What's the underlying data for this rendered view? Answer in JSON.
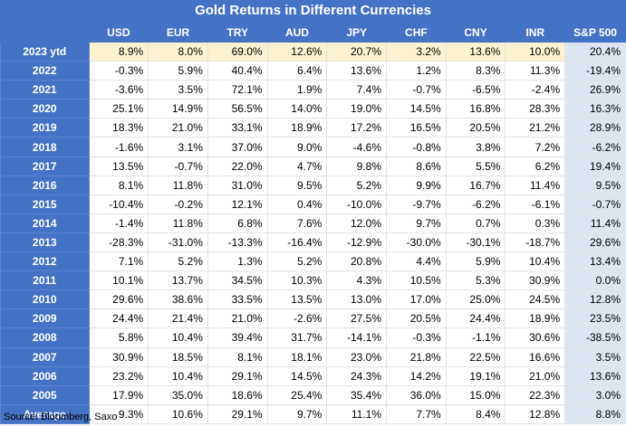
{
  "title": "Gold Returns in Different Currencies",
  "columns": [
    "",
    "USD",
    "EUR",
    "TRY",
    "AUD",
    "JPY",
    "CHF",
    "CNY",
    "INR",
    "S&P 500"
  ],
  "rows": [
    {
      "label": "2023 ytd",
      "values": [
        "8.9%",
        "8.0%",
        "69.0%",
        "12.6%",
        "20.7%",
        "3.2%",
        "13.6%",
        "10.0%",
        "20.4%"
      ]
    },
    {
      "label": "2022",
      "values": [
        "-0.3%",
        "5.9%",
        "40.4%",
        "6.4%",
        "13.6%",
        "1.2%",
        "8.3%",
        "11.3%",
        "-19.4%"
      ]
    },
    {
      "label": "2021",
      "values": [
        "-3.6%",
        "3.5%",
        "72.1%",
        "1.9%",
        "7.4%",
        "-0.7%",
        "-6.5%",
        "-2.4%",
        "26.9%"
      ]
    },
    {
      "label": "2020",
      "values": [
        "25.1%",
        "14.9%",
        "56.5%",
        "14.0%",
        "19.0%",
        "14.5%",
        "16.8%",
        "28.3%",
        "16.3%"
      ]
    },
    {
      "label": "2019",
      "values": [
        "18.3%",
        "21.0%",
        "33.1%",
        "18.9%",
        "17.2%",
        "16.5%",
        "20.5%",
        "21.2%",
        "28.9%"
      ]
    },
    {
      "label": "2018",
      "values": [
        "-1.6%",
        "3.1%",
        "37.0%",
        "9.0%",
        "-4.6%",
        "-0.8%",
        "3.8%",
        "7.2%",
        "-6.2%"
      ]
    },
    {
      "label": "2017",
      "values": [
        "13.5%",
        "-0.7%",
        "22.0%",
        "4.7%",
        "9.8%",
        "8.6%",
        "5.5%",
        "6.2%",
        "19.4%"
      ]
    },
    {
      "label": "2016",
      "values": [
        "8.1%",
        "11.8%",
        "31.0%",
        "9.5%",
        "5.2%",
        "9.9%",
        "16.7%",
        "11.4%",
        "9.5%"
      ]
    },
    {
      "label": "2015",
      "values": [
        "-10.4%",
        "-0.2%",
        "12.1%",
        "0.4%",
        "-10.0%",
        "-9.7%",
        "-6.2%",
        "-6.1%",
        "-0.7%"
      ]
    },
    {
      "label": "2014",
      "values": [
        "-1.4%",
        "11.8%",
        "6.8%",
        "7.6%",
        "12.0%",
        "9.7%",
        "0.7%",
        "0.3%",
        "11.4%"
      ]
    },
    {
      "label": "2013",
      "values": [
        "-28.3%",
        "-31.0%",
        "-13.3%",
        "-16.4%",
        "-12.9%",
        "-30.0%",
        "-30.1%",
        "-18.7%",
        "29.6%"
      ]
    },
    {
      "label": "2012",
      "values": [
        "7.1%",
        "5.2%",
        "1.3%",
        "5.2%",
        "20.8%",
        "4.4%",
        "5.9%",
        "10.4%",
        "13.4%"
      ]
    },
    {
      "label": "2011",
      "values": [
        "10.1%",
        "13.7%",
        "34.5%",
        "10.3%",
        "4.3%",
        "10.5%",
        "5.3%",
        "30.9%",
        "0.0%"
      ]
    },
    {
      "label": "2010",
      "values": [
        "29.6%",
        "38.6%",
        "33.5%",
        "13.5%",
        "13.0%",
        "17.0%",
        "25.0%",
        "24.5%",
        "12.8%"
      ]
    },
    {
      "label": "2009",
      "values": [
        "24.4%",
        "21.4%",
        "21.0%",
        "-2.6%",
        "27.5%",
        "20.5%",
        "24.4%",
        "18.9%",
        "23.5%"
      ]
    },
    {
      "label": "2008",
      "values": [
        "5.8%",
        "10.4%",
        "39.4%",
        "31.7%",
        "-14.1%",
        "-0.3%",
        "-1.1%",
        "30.6%",
        "-38.5%"
      ]
    },
    {
      "label": "2007",
      "values": [
        "30.9%",
        "18.5%",
        "8.1%",
        "18.1%",
        "23.0%",
        "21.8%",
        "22.5%",
        "16.6%",
        "3.5%"
      ]
    },
    {
      "label": "2006",
      "values": [
        "23.2%",
        "10.4%",
        "29.1%",
        "14.5%",
        "24.3%",
        "14.2%",
        "19.1%",
        "21.0%",
        "13.6%"
      ]
    },
    {
      "label": "2005",
      "values": [
        "17.9%",
        "35.0%",
        "18.6%",
        "25.4%",
        "35.4%",
        "36.0%",
        "15.0%",
        "22.3%",
        "3.0%"
      ]
    },
    {
      "label": "Average",
      "values": [
        "9.3%",
        "10.6%",
        "29.1%",
        "9.7%",
        "11.1%",
        "7.7%",
        "8.4%",
        "12.8%",
        "8.8%"
      ]
    }
  ],
  "source": "Source: Bloomberg, Saxo",
  "colors": {
    "header_bg": "#4472c4",
    "ytd_row_bg": "#fdf2d0",
    "sp500_col_bg": "#dce6f2"
  }
}
